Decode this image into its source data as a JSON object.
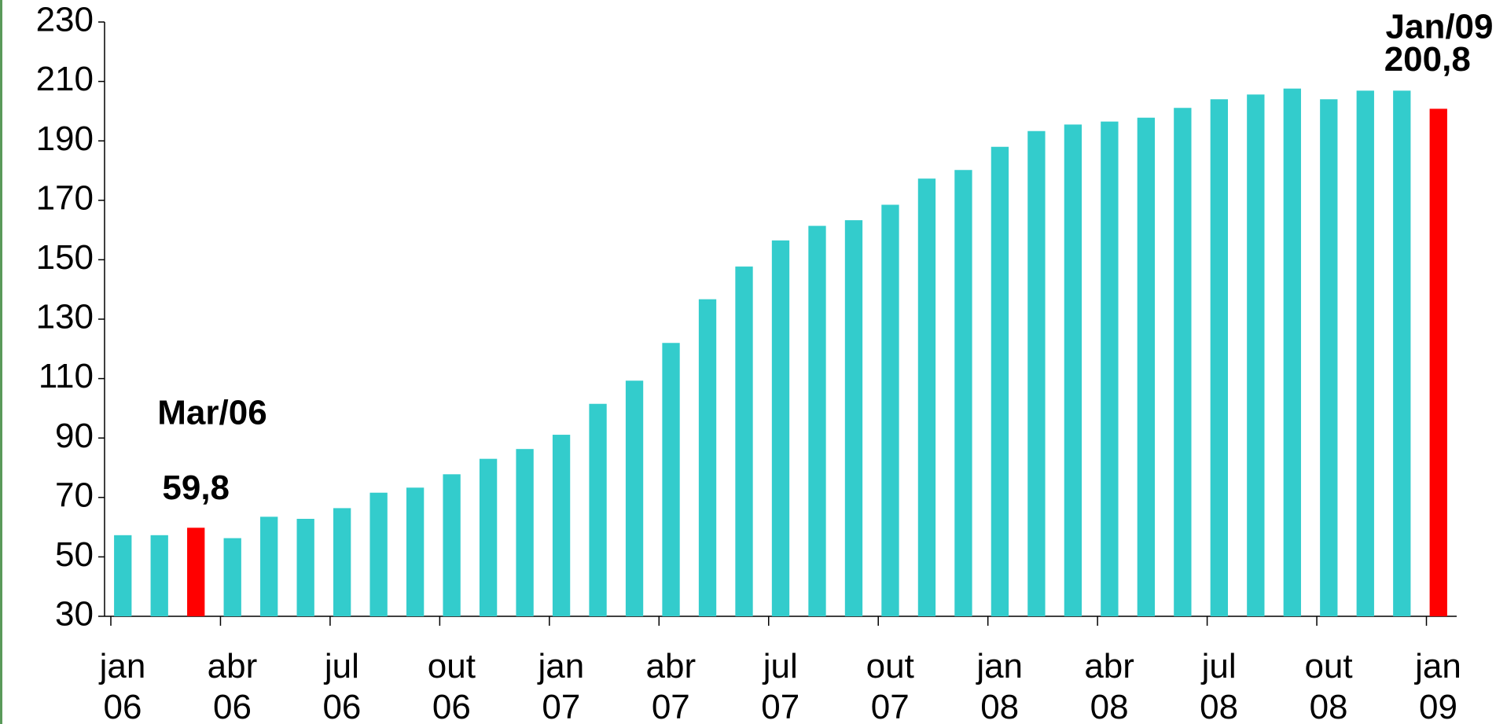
{
  "chart_data": {
    "type": "bar",
    "categories": [
      "jan 06",
      null,
      null,
      "abr 06",
      null,
      null,
      "jul 06",
      null,
      null,
      "out 06",
      null,
      null,
      "jan 07",
      null,
      null,
      "abr 07",
      null,
      null,
      "jul 07",
      null,
      null,
      "out 07",
      null,
      null,
      "jan 08",
      null,
      null,
      "abr 08",
      null,
      null,
      "jul 08",
      null,
      null,
      "out 08",
      null,
      null,
      "jan 09"
    ],
    "values": [
      57.3,
      57.3,
      59.8,
      56.3,
      63.5,
      62.8,
      66.4,
      71.6,
      73.3,
      77.8,
      83.0,
      86.3,
      91.1,
      101.5,
      109.3,
      122.0,
      136.7,
      147.7,
      156.5,
      161.4,
      163.3,
      168.5,
      177.3,
      180.2,
      188.0,
      193.3,
      195.5,
      196.5,
      197.8,
      201.1,
      204.0,
      205.6,
      207.6,
      204.0,
      206.9,
      206.9,
      200.8
    ],
    "value_labels": [
      null,
      null,
      "59,8",
      null,
      null,
      null,
      null,
      null,
      null,
      null,
      null,
      null,
      null,
      null,
      null,
      null,
      null,
      null,
      null,
      null,
      null,
      null,
      null,
      null,
      null,
      null,
      null,
      null,
      null,
      null,
      null,
      null,
      null,
      null,
      null,
      null,
      "200,8"
    ],
    "colors": [
      "#33cccc",
      "#33cccc",
      "#ff0000",
      "#33cccc",
      "#33cccc",
      "#33cccc",
      "#33cccc",
      "#33cccc",
      "#33cccc",
      "#33cccc",
      "#33cccc",
      "#33cccc",
      "#33cccc",
      "#33cccc",
      "#33cccc",
      "#33cccc",
      "#33cccc",
      "#33cccc",
      "#33cccc",
      "#33cccc",
      "#33cccc",
      "#33cccc",
      "#33cccc",
      "#33cccc",
      "#33cccc",
      "#33cccc",
      "#33cccc",
      "#33cccc",
      "#33cccc",
      "#33cccc",
      "#33cccc",
      "#33cccc",
      "#33cccc",
      "#33cccc",
      "#33cccc",
      "#33cccc",
      "#ff0000"
    ],
    "annotations": [
      "Mar/06",
      "Jan/09"
    ],
    "ylim": [
      30,
      230
    ],
    "yticks": [
      30,
      50,
      70,
      90,
      110,
      130,
      150,
      170,
      190,
      210,
      230
    ],
    "grid": false
  }
}
